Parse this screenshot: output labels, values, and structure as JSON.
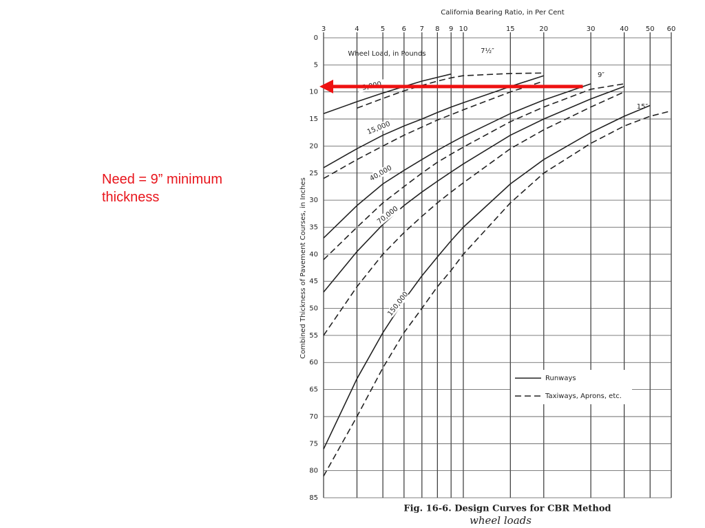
{
  "slide_text": "Need  = 9” minimum thickness",
  "chart_data": {
    "type": "line",
    "x_label": "California Bearing Ratio, in Per Cent",
    "y_label": "Combined Thickness of Pavement Courses, in Inches",
    "load_title": "Wheel Load, in Pounds",
    "caption": "Fig. 16-6.   Design Curves for CBR Method",
    "handwritten": "wheel loads",
    "x_log": true,
    "y_inverted": true,
    "grid": true,
    "color": "#222222",
    "x": [
      3,
      4,
      5,
      6,
      7,
      8,
      9,
      10,
      15,
      20,
      30,
      40,
      50,
      60
    ],
    "xlim": [
      3,
      60
    ],
    "xticks": [
      3,
      4,
      5,
      6,
      7,
      8,
      9,
      10,
      15,
      20,
      30,
      40,
      50,
      60
    ],
    "ylim": [
      0,
      85
    ],
    "yticks": [
      0,
      5,
      10,
      15,
      20,
      25,
      30,
      35,
      40,
      45,
      50,
      55,
      60,
      65,
      70,
      75,
      80,
      85
    ],
    "legend": {
      "runways": "Runways",
      "taxiways": "Taxiways, Aprons, etc."
    },
    "loads": [
      {
        "label": "5,000",
        "runways": [
          14,
          11.8,
          10.2,
          9,
          8,
          7.3,
          6.7,
          null,
          null,
          null,
          null,
          null,
          null,
          null
        ],
        "taxiways": [
          null,
          13,
          11.2,
          9.8,
          8.8,
          8,
          7.4,
          7,
          6.6,
          6.5,
          null,
          null,
          null,
          null
        ]
      },
      {
        "label": "15,000",
        "runways": [
          24,
          20.5,
          18,
          16.3,
          15,
          13.8,
          12.8,
          12,
          9,
          7,
          null,
          null,
          null,
          null
        ],
        "taxiways": [
          26,
          22.5,
          20,
          18,
          16.5,
          15.2,
          14.2,
          13.3,
          10,
          8,
          null,
          null,
          null,
          null
        ]
      },
      {
        "label": "40,000",
        "runways": [
          37,
          31,
          27,
          24.5,
          22.5,
          20.8,
          19.4,
          18.2,
          14,
          11.5,
          8.5,
          null,
          null,
          null
        ],
        "taxiways": [
          41,
          35,
          30.5,
          27.5,
          25,
          23,
          21.5,
          20.2,
          15.5,
          12.8,
          9.5,
          8.5,
          null,
          null
        ]
      },
      {
        "label": "70,000",
        "runways": [
          47,
          39.5,
          34.5,
          31,
          28.5,
          26.5,
          24.8,
          23.3,
          18,
          15,
          11.3,
          9,
          null,
          null
        ],
        "taxiways": [
          55,
          46,
          40,
          36,
          33,
          30.5,
          28.5,
          26.8,
          20.5,
          17,
          12.8,
          10,
          null,
          null
        ]
      },
      {
        "label": "150,000",
        "runways": [
          76,
          63,
          54.5,
          48.5,
          44,
          40.5,
          37.5,
          35,
          27,
          22.5,
          17.5,
          14.5,
          12.5,
          null
        ],
        "taxiways": [
          81,
          70,
          61,
          54.5,
          50,
          46,
          43,
          40,
          30.5,
          25,
          19.5,
          16.3,
          14.5,
          13.5
        ]
      }
    ],
    "thickness_notes": [
      "7½″",
      "9″",
      "15″"
    ],
    "arrow": {
      "thickness": 9,
      "from_cbr": 28,
      "to_cbr": 3,
      "color": "#ee1111"
    }
  }
}
